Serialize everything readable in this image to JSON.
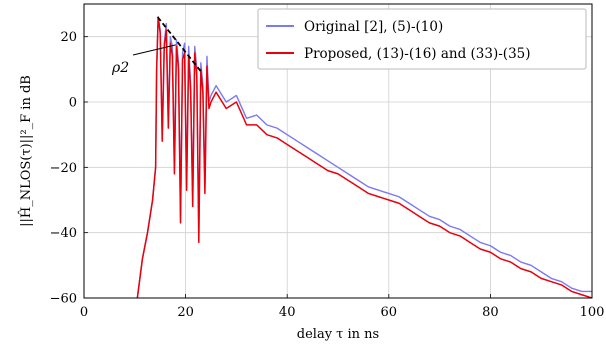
{
  "chart_data": {
    "type": "line",
    "xlabel": "delay τ in ns",
    "ylabel": "||Ĥ_NLOS(τ)||²_F in dB",
    "xlim": [
      0,
      100
    ],
    "ylim": [
      -60,
      30
    ],
    "xticks": [
      0,
      20,
      40,
      60,
      80,
      100
    ],
    "yticks": [
      -60,
      -40,
      -20,
      0,
      20
    ],
    "grid": true,
    "legend_position": "top-right",
    "annotation": {
      "text": "ρ2",
      "line_start": [
        14.5,
        26
      ],
      "line_end": [
        23.2,
        9
      ]
    },
    "series": [
      {
        "name": "Original [2], (5)-(10)",
        "color": "#7b7bf0",
        "x": [
          10.5,
          11.5,
          12.5,
          13.5,
          14.1,
          14.3,
          14.6,
          15.0,
          15.4,
          15.8,
          16.2,
          16.6,
          17.0,
          17.4,
          17.8,
          18.2,
          18.6,
          19.0,
          19.4,
          19.8,
          20.2,
          20.6,
          21.0,
          21.4,
          21.8,
          22.2,
          22.6,
          23.0,
          23.4,
          23.8,
          24.2,
          24.6,
          25.0,
          26,
          28,
          30,
          32,
          34,
          36,
          38,
          40,
          42,
          44,
          46,
          48,
          50,
          52,
          54,
          56,
          58,
          60,
          62,
          64,
          66,
          68,
          70,
          72,
          74,
          76,
          78,
          80,
          82,
          84,
          86,
          88,
          90,
          92,
          94,
          96,
          98,
          100
        ],
        "y": [
          -60,
          -48,
          -40,
          -30,
          -20,
          10,
          26,
          22,
          -10,
          18,
          24,
          -5,
          20,
          17,
          -20,
          19,
          12,
          -35,
          15,
          18,
          -25,
          17,
          5,
          -30,
          17,
          10,
          -40,
          12,
          5,
          -25,
          14,
          0,
          2,
          5,
          0,
          2,
          -5,
          -4,
          -7,
          -8,
          -10,
          -12,
          -14,
          -16,
          -18,
          -20,
          -22,
          -24,
          -26,
          -27,
          -28,
          -29,
          -31,
          -33,
          -35,
          -36,
          -38,
          -39,
          -41,
          -43,
          -44,
          -46,
          -47,
          -49,
          -50,
          -52,
          -54,
          -55,
          -57,
          -58,
          -58
        ]
      },
      {
        "name": "Proposed, (13)-(16) and (33)-(35)",
        "color": "#e8000b",
        "x": [
          10.5,
          11.5,
          12.5,
          13.5,
          14.1,
          14.3,
          14.6,
          15.0,
          15.4,
          15.8,
          16.2,
          16.6,
          17.0,
          17.4,
          17.8,
          18.2,
          18.6,
          19.0,
          19.4,
          19.8,
          20.2,
          20.6,
          21.0,
          21.4,
          21.8,
          22.2,
          22.6,
          23.0,
          23.4,
          23.8,
          24.2,
          24.6,
          25.0,
          26,
          28,
          30,
          32,
          34,
          36,
          38,
          40,
          42,
          44,
          46,
          48,
          50,
          52,
          54,
          56,
          58,
          60,
          62,
          64,
          66,
          68,
          70,
          72,
          74,
          76,
          78,
          80,
          82,
          84,
          86,
          88,
          90,
          92,
          94,
          96,
          98,
          100
        ],
        "y": [
          -60,
          -48,
          -40,
          -30,
          -20,
          10,
          26,
          21,
          -12,
          17,
          22,
          -8,
          18,
          14,
          -22,
          17,
          10,
          -37,
          13,
          15,
          -27,
          14,
          3,
          -32,
          15,
          8,
          -43,
          10,
          3,
          -28,
          11,
          -2,
          0,
          3,
          -2,
          0,
          -7,
          -7,
          -10,
          -11,
          -13,
          -15,
          -17,
          -19,
          -21,
          -22,
          -24,
          -26,
          -28,
          -29,
          -30,
          -31,
          -33,
          -35,
          -37,
          -38,
          -40,
          -41,
          -43,
          -45,
          -46,
          -48,
          -49,
          -51,
          -52,
          -54,
          -55,
          -56,
          -58,
          -59,
          -60
        ]
      }
    ]
  }
}
